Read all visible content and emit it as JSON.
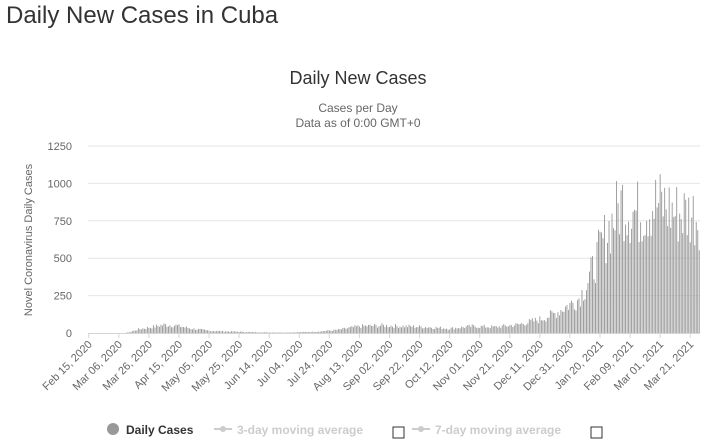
{
  "page": {
    "title": "Daily New Cases in Cuba"
  },
  "colors": {
    "bar": "#999999",
    "grid": "#e6e6e6",
    "axis": "#ccd6eb",
    "text": "#333333",
    "muted": "#666666",
    "legend_off": "#cccccc"
  },
  "chart_data": {
    "type": "bar",
    "title": "Daily New Cases",
    "subtitle_line1": "Cases per Day",
    "subtitle_line2": "Data as of 0:00 GMT+0",
    "ylabel": "Novel Coronavirus Daily Cases",
    "xlabel": "",
    "ylim": [
      0,
      1250
    ],
    "yticks": [
      "0",
      "250",
      "500",
      "750",
      "1000",
      "1250"
    ],
    "x_start": "Feb 15, 2020",
    "x_end": "Mar 27, 2021",
    "x_tick_labels": [
      "Feb 15, 2020",
      "Mar 06, 2020",
      "Mar 26, 2020",
      "Apr 15, 2020",
      "May 05, 2020",
      "May 25, 2020",
      "Jun 14, 2020",
      "Jul 04, 2020",
      "Jul 24, 2020",
      "Aug 13, 2020",
      "Sep 02, 2020",
      "Sep 22, 2020",
      "Oct 12, 2020",
      "Nov 01, 2020",
      "Nov 21, 2020",
      "Dec 11, 2020",
      "Dec 31, 2020",
      "Jan 20, 2021",
      "Feb 09, 2021",
      "Mar 01, 2021",
      "Mar 21, 2021"
    ],
    "series": [
      {
        "name": "Daily Cases",
        "color": "#999999",
        "anchors": [
          {
            "day": 0,
            "value": 0
          },
          {
            "day": 24,
            "value": 0
          },
          {
            "day": 27,
            "value": 5
          },
          {
            "day": 33,
            "value": 25
          },
          {
            "day": 42,
            "value": 40
          },
          {
            "day": 50,
            "value": 55
          },
          {
            "day": 58,
            "value": 50
          },
          {
            "day": 68,
            "value": 30
          },
          {
            "day": 80,
            "value": 15
          },
          {
            "day": 95,
            "value": 10
          },
          {
            "day": 110,
            "value": 5
          },
          {
            "day": 130,
            "value": 3
          },
          {
            "day": 150,
            "value": 8
          },
          {
            "day": 165,
            "value": 20
          },
          {
            "day": 180,
            "value": 45
          },
          {
            "day": 195,
            "value": 50
          },
          {
            "day": 210,
            "value": 45
          },
          {
            "day": 225,
            "value": 40
          },
          {
            "day": 240,
            "value": 30
          },
          {
            "day": 255,
            "value": 45
          },
          {
            "day": 270,
            "value": 40
          },
          {
            "day": 285,
            "value": 55
          },
          {
            "day": 300,
            "value": 90
          },
          {
            "day": 310,
            "value": 130
          },
          {
            "day": 318,
            "value": 180
          },
          {
            "day": 325,
            "value": 220
          },
          {
            "day": 330,
            "value": 300
          },
          {
            "day": 335,
            "value": 420
          },
          {
            "day": 340,
            "value": 560
          },
          {
            "day": 345,
            "value": 680
          },
          {
            "day": 350,
            "value": 780
          },
          {
            "day": 355,
            "value": 880
          },
          {
            "day": 360,
            "value": 820
          },
          {
            "day": 365,
            "value": 800
          },
          {
            "day": 370,
            "value": 830
          },
          {
            "day": 375,
            "value": 860
          },
          {
            "day": 380,
            "value": 860
          },
          {
            "day": 385,
            "value": 840
          },
          {
            "day": 390,
            "value": 800
          },
          {
            "day": 395,
            "value": 800
          },
          {
            "day": 405,
            "value": 790
          }
        ]
      },
      {
        "name": "3-day moving average",
        "enabled": false
      },
      {
        "name": "7-day moving average",
        "enabled": false
      }
    ],
    "legend": {
      "position": "bottom"
    }
  }
}
